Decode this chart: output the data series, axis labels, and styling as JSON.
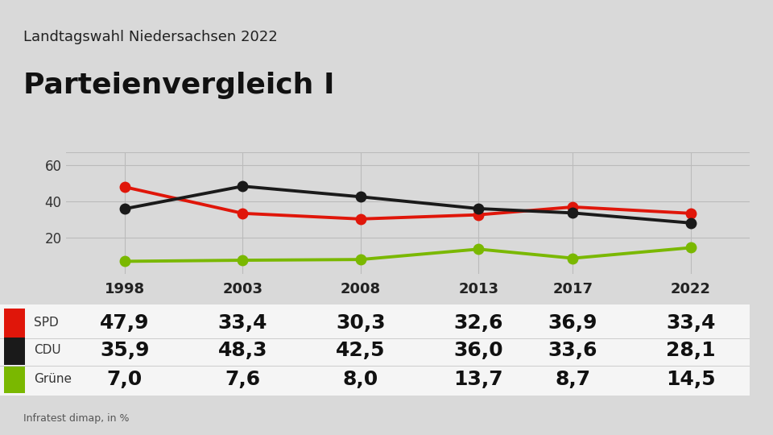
{
  "title_small": "Landtagswahl Niedersachsen 2022",
  "title_large": "Parteienvergleich I",
  "source": "Infratest dimap, in %",
  "years": [
    1998,
    2003,
    2008,
    2013,
    2017,
    2022
  ],
  "series": [
    {
      "name": "SPD",
      "color": "#e0160a",
      "values": [
        47.9,
        33.4,
        30.3,
        32.6,
        36.9,
        33.4
      ]
    },
    {
      "name": "CDU",
      "color": "#1a1a1a",
      "values": [
        35.9,
        48.3,
        42.5,
        36.0,
        33.6,
        28.1
      ]
    },
    {
      "name": "Grüne",
      "color": "#7ab800",
      "values": [
        7.0,
        7.6,
        8.0,
        13.7,
        8.7,
        14.5
      ]
    }
  ],
  "yticks": [
    20,
    40,
    60
  ],
  "ylim": [
    0,
    67
  ],
  "bg_color": "#d9d9d9",
  "table_bg_color": "#f5f5f5",
  "grid_color": "#bbbbbb",
  "marker_size": 9,
  "line_width": 2.8,
  "title_small_fontsize": 13,
  "title_large_fontsize": 26,
  "table_value_fontsize": 18,
  "table_label_fontsize": 11,
  "source_fontsize": 9
}
